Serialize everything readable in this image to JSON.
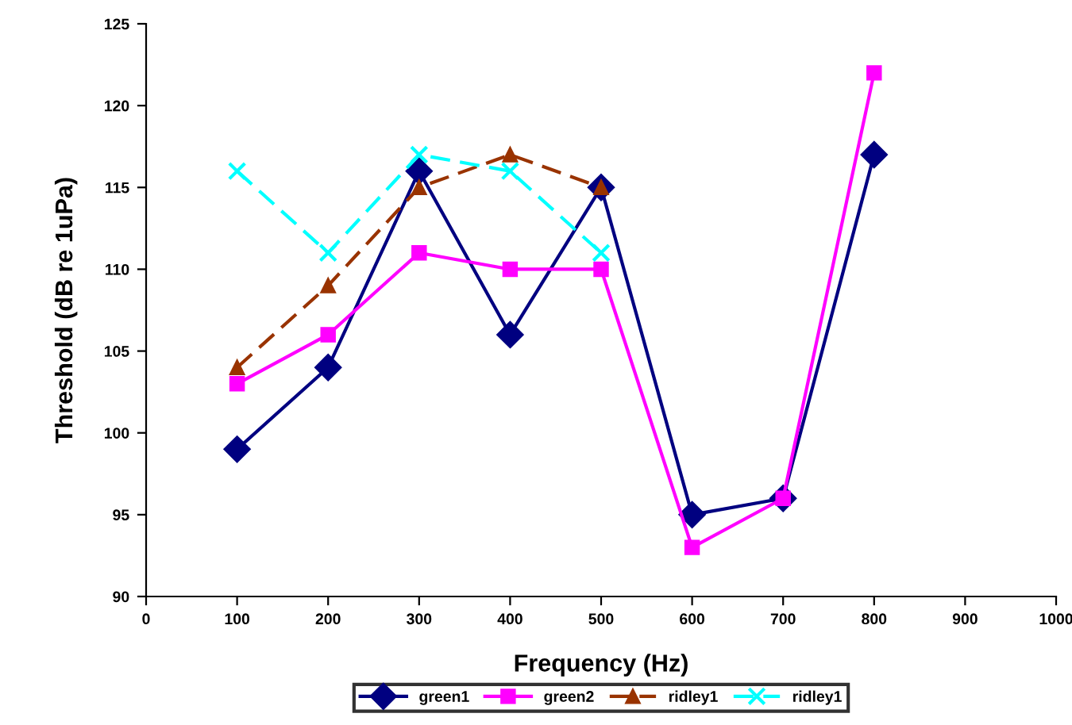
{
  "chart_data": {
    "type": "line",
    "xlabel": "Frequency (Hz)",
    "ylabel": "Threshold (dB re 1uPa)",
    "x": [
      100,
      200,
      300,
      400,
      500,
      600,
      700,
      800
    ],
    "series": [
      {
        "name": "green1",
        "color": "#000080",
        "marker": "diamond",
        "line_style": "solid",
        "values": [
          99,
          104,
          116,
          106,
          115,
          95,
          96,
          117
        ]
      },
      {
        "name": "green2",
        "color": "#ff00ff",
        "marker": "square",
        "line_style": "solid",
        "values": [
          103,
          106,
          111,
          110,
          110,
          93,
          96,
          122
        ]
      },
      {
        "name": "ridley1",
        "color": "#993300",
        "marker": "triangle",
        "line_style": "dashed",
        "values": [
          104,
          109,
          115,
          117,
          115,
          null,
          null,
          null
        ]
      },
      {
        "name": "ridley1",
        "color": "#00ffff",
        "marker": "cross",
        "line_style": "dashed",
        "values": [
          116,
          111,
          117,
          116,
          111,
          null,
          null,
          null
        ]
      }
    ],
    "xlim": [
      0,
      1000
    ],
    "xticks": [
      0,
      100,
      200,
      300,
      400,
      500,
      600,
      700,
      800,
      900,
      1000
    ],
    "ylim": [
      90,
      125
    ],
    "yticks": [
      90,
      95,
      100,
      105,
      110,
      115,
      120,
      125
    ],
    "grid": false,
    "legend": "bottom"
  }
}
